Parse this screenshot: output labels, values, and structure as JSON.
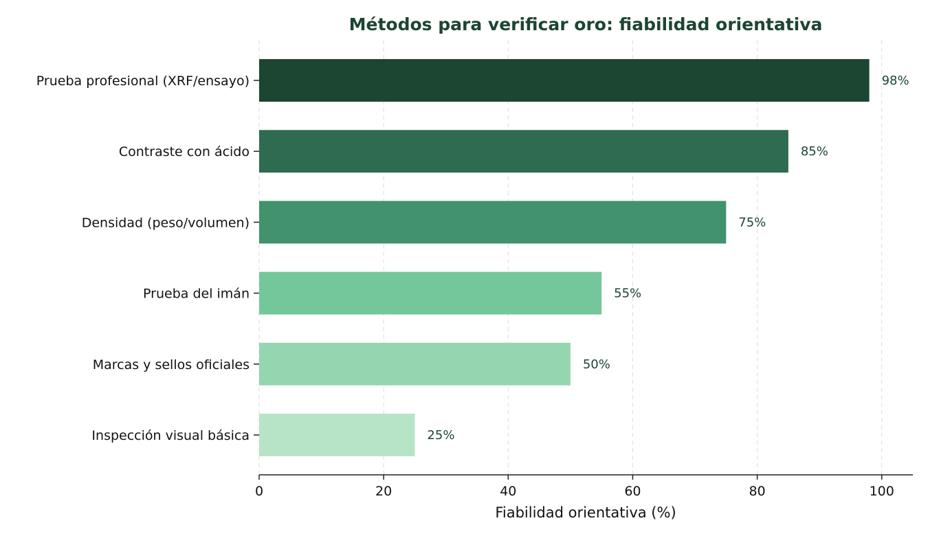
{
  "chart_data": {
    "type": "bar",
    "orientation": "horizontal",
    "title": "Métodos para verificar oro: fiabilidad orientativa",
    "xlabel": "Fiabilidad orientativa (%)",
    "ylabel": "",
    "xlim": [
      0,
      105
    ],
    "xticks": [
      0,
      20,
      40,
      60,
      80,
      100
    ],
    "xtick_labels": [
      "0",
      "20",
      "40",
      "60",
      "80",
      "100"
    ],
    "grid": "vertical dashed",
    "categories": [
      "Prueba profesional (XRF/ensayo)",
      "Contraste con ácido",
      "Densidad (peso/volumen)",
      "Prueba del imán",
      "Marcas y sellos oficiales",
      "Inspección visual básica"
    ],
    "values": [
      98,
      85,
      75,
      55,
      50,
      25
    ],
    "value_labels": [
      "98%",
      "85%",
      "75%",
      "55%",
      "50%",
      "25%"
    ],
    "colors": [
      "#1c4532",
      "#2e6b51",
      "#41926d",
      "#73c79b",
      "#95d5b0",
      "#b7e4c7"
    ]
  }
}
